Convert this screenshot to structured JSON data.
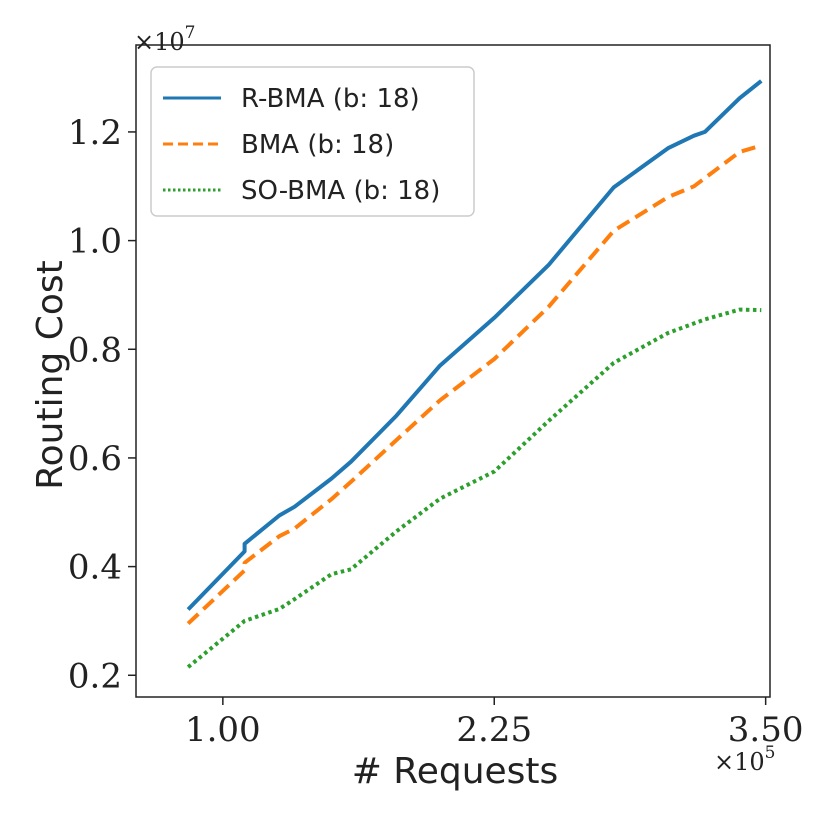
{
  "chart_data": {
    "type": "line",
    "xlabel": "# Requests",
    "ylabel": "Routing Cost",
    "x_multiplier": "×10^5",
    "y_multiplier": "×10^7",
    "xlim": [
      0.6,
      3.52
    ],
    "ylim": [
      0.16,
      1.36
    ],
    "xticks": [
      1.0,
      2.25,
      3.5
    ],
    "xtick_labels": [
      "1.00",
      "2.25",
      "3.50"
    ],
    "yticks": [
      0.2,
      0.4,
      0.6,
      0.8,
      1.0,
      1.2
    ],
    "ytick_labels": [
      "0.2",
      "0.4",
      "0.6",
      "0.8",
      "1.0",
      "1.2"
    ],
    "legend_position": "top-left",
    "series": [
      {
        "name": "R-BMA (b: 18)",
        "color": "#1f77b4",
        "style": "solid",
        "x": [
          0.84,
          1.1,
          1.1,
          1.26,
          1.33,
          1.5,
          1.59,
          1.8,
          2.0,
          2.25,
          2.5,
          2.8,
          3.05,
          3.17,
          3.22,
          3.38,
          3.48
        ],
        "y": [
          0.321,
          0.428,
          0.442,
          0.494,
          0.51,
          0.562,
          0.593,
          0.678,
          0.77,
          0.858,
          0.955,
          1.098,
          1.17,
          1.193,
          1.2,
          1.262,
          1.294
        ]
      },
      {
        "name": "BMA (b: 18)",
        "color": "#ff7f0e",
        "style": "dashed",
        "x": [
          0.84,
          1.1,
          1.1,
          1.26,
          1.33,
          1.5,
          1.59,
          1.8,
          2.0,
          2.25,
          2.5,
          2.8,
          3.05,
          3.17,
          3.22,
          3.38,
          3.48
        ],
        "y": [
          0.295,
          0.393,
          0.407,
          0.456,
          0.47,
          0.524,
          0.556,
          0.633,
          0.706,
          0.782,
          0.878,
          1.018,
          1.08,
          1.1,
          1.115,
          1.163,
          1.175
        ]
      },
      {
        "name": "SO-BMA (b: 18)",
        "color": "#2ca02c",
        "style": "dotted",
        "x": [
          0.84,
          1.1,
          1.26,
          1.33,
          1.5,
          1.59,
          1.8,
          2.0,
          2.25,
          2.5,
          2.8,
          3.05,
          3.22,
          3.38,
          3.48
        ],
        "y": [
          0.215,
          0.3,
          0.322,
          0.34,
          0.386,
          0.395,
          0.465,
          0.525,
          0.575,
          0.668,
          0.775,
          0.83,
          0.855,
          0.873,
          0.872
        ]
      }
    ]
  }
}
